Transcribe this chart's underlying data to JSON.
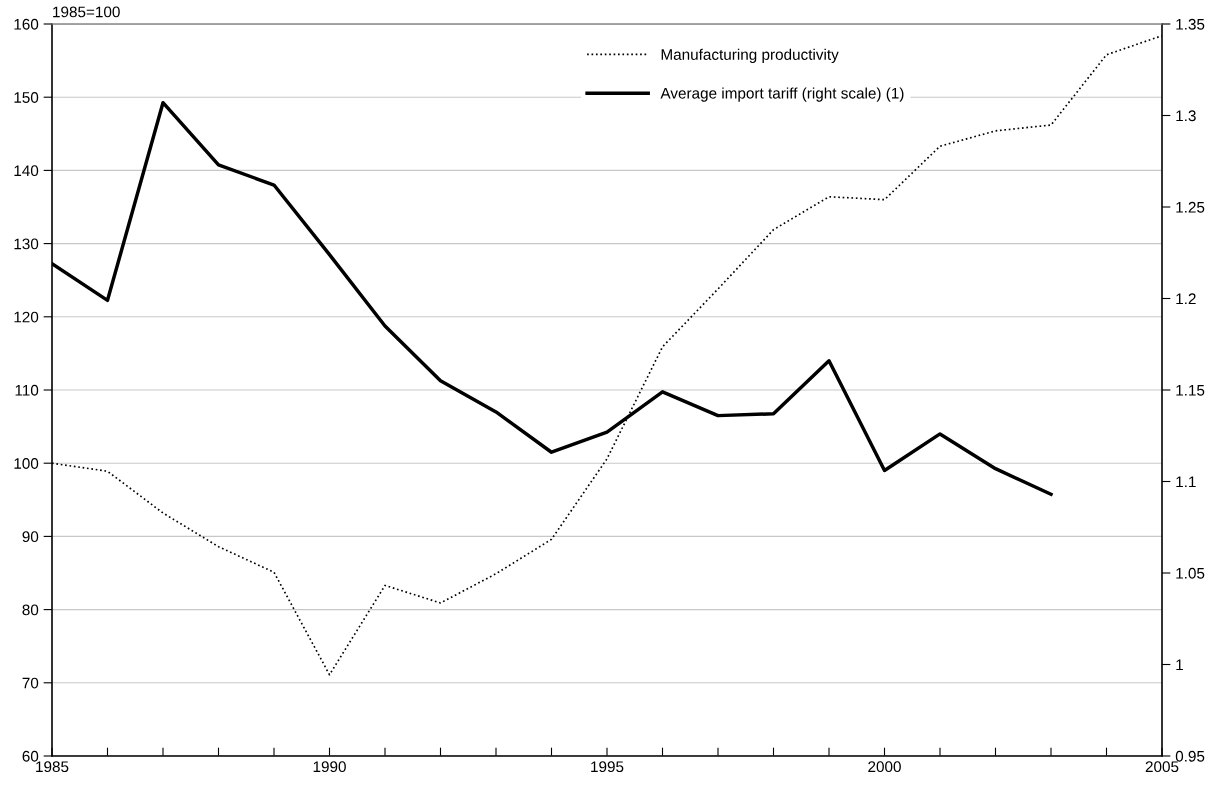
{
  "chart_data": {
    "type": "line",
    "ylabel": "1985=100",
    "x": [
      1985,
      1986,
      1987,
      1988,
      1989,
      1990,
      1991,
      1992,
      1993,
      1994,
      1995,
      1996,
      1997,
      1998,
      1999,
      2000,
      2001,
      2002,
      2003,
      2004,
      2005
    ],
    "series": [
      {
        "name": "Manufacturing productivity",
        "color": "#000000",
        "line_style": "dotted",
        "values": [
          100,
          98.9,
          93.2,
          88.6,
          85.1,
          71.1,
          83.3,
          80.9,
          84.9,
          89.6,
          100.6,
          115.9,
          123.8,
          131.9,
          136.4,
          136.0,
          143.3,
          145.4,
          146.2,
          155.8,
          158.4
        ]
      },
      {
        "name": "Average import tariff (right scale) (1)",
        "color": "#000000",
        "line_style": "solid",
        "axis": "y2",
        "values": [
          1.219,
          1.199,
          1.307,
          1.273,
          1.262,
          1.224,
          1.185,
          1.155,
          1.138,
          1.116,
          1.127,
          1.149,
          1.136,
          1.137,
          1.166,
          1.106,
          1.126,
          1.107,
          1.093,
          null,
          null
        ]
      }
    ],
    "xlim": [
      1985,
      2005
    ],
    "xticks": [
      1985,
      {
        "value": 1986,
        "label": null
      },
      {
        "value": 1987,
        "label": null
      },
      {
        "value": 1988,
        "label": null
      },
      {
        "value": 1989,
        "label": null
      },
      1990,
      {
        "value": 1991,
        "label": null
      },
      {
        "value": 1992,
        "label": null
      },
      {
        "value": 1993,
        "label": null
      },
      {
        "value": 1994,
        "label": null
      },
      1995,
      {
        "value": 1996,
        "label": null
      },
      {
        "value": 1997,
        "label": null
      },
      {
        "value": 1998,
        "label": null
      },
      {
        "value": 1999,
        "label": null
      },
      2000,
      {
        "value": 2001,
        "label": null
      },
      {
        "value": 2002,
        "label": null
      },
      {
        "value": 2003,
        "label": null
      },
      {
        "value": 2004,
        "label": null
      },
      2005
    ],
    "ylim": [
      60,
      160
    ],
    "yticks": [
      60,
      70,
      80,
      90,
      100,
      110,
      120,
      130,
      140,
      150,
      160
    ],
    "y2lim": [
      0.95,
      1.35
    ],
    "y2ticks": [
      0.95,
      1,
      1.05,
      1.1,
      1.15,
      1.2,
      1.25,
      1.3,
      1.35
    ],
    "grid": "y",
    "legend": "top",
    "marker": "none"
  }
}
